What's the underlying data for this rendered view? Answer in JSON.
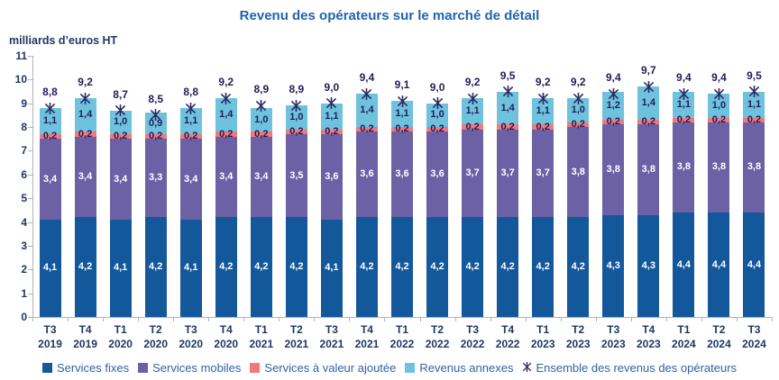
{
  "title": "Revenu des opérateurs sur le marché de détail",
  "unit_label": "milliards d’euros HT",
  "colors": {
    "title_text": "#1F64AF",
    "legend_text": "#2E64A5",
    "axis_text": "#1F3864",
    "axis_line": "#B3B3B3",
    "value_text_dark": "#231C5A",
    "marker": "#2E2963"
  },
  "chart_data": {
    "type": "bar",
    "stacked": true,
    "grid": false,
    "legend_position": "bottom",
    "decimal_separator": ",",
    "ylim": [
      0,
      11
    ],
    "ytick_step": 1,
    "categories": [
      "T3 2019",
      "T4 2019",
      "T1 2020",
      "T2 2020",
      "T3 2020",
      "T4 2020",
      "T1 2021",
      "T2 2021",
      "T3 2021",
      "T4 2021",
      "T1 2022",
      "T2 2022",
      "T3 2022",
      "T4 2022",
      "T1 2023",
      "T2 2023",
      "T3 2023",
      "T4 2023",
      "T1 2024",
      "T2 2024",
      "T3 2024"
    ],
    "series": [
      {
        "name": "Services fixes",
        "color": "#14589C",
        "label_color": "#FFFFFF",
        "values": [
          4.1,
          4.2,
          4.1,
          4.2,
          4.1,
          4.2,
          4.2,
          4.2,
          4.1,
          4.2,
          4.2,
          4.2,
          4.2,
          4.2,
          4.2,
          4.2,
          4.3,
          4.3,
          4.4,
          4.4,
          4.4
        ]
      },
      {
        "name": "Services mobiles",
        "color": "#6C61A4",
        "label_color": "#FFFFFF",
        "values": [
          3.4,
          3.4,
          3.4,
          3.3,
          3.4,
          3.4,
          3.4,
          3.5,
          3.6,
          3.6,
          3.6,
          3.6,
          3.7,
          3.7,
          3.7,
          3.8,
          3.8,
          3.8,
          3.8,
          3.8,
          3.8
        ]
      },
      {
        "name": "Services à valeur ajoutée",
        "color": "#F1787B",
        "label_color": "#231C5A",
        "values": [
          0.2,
          0.2,
          0.2,
          0.2,
          0.2,
          0.2,
          0.2,
          0.2,
          0.2,
          0.2,
          0.2,
          0.2,
          0.2,
          0.2,
          0.2,
          0.2,
          0.2,
          0.2,
          0.2,
          0.2,
          0.2
        ]
      },
      {
        "name": "Revenus annexes",
        "color": "#6FC2DD",
        "label_color": "#231C5A",
        "values": [
          1.1,
          1.4,
          1.0,
          0.9,
          1.1,
          1.4,
          1.0,
          1.0,
          1.1,
          1.4,
          1.1,
          1.0,
          1.1,
          1.4,
          1.1,
          1.0,
          1.2,
          1.4,
          1.1,
          1.0,
          1.1
        ]
      }
    ],
    "totals": {
      "name": "Ensemble des revenus des opérateurs",
      "marker": "asterisk",
      "values": [
        8.8,
        9.2,
        8.7,
        8.5,
        8.8,
        9.2,
        8.9,
        8.9,
        9.0,
        9.4,
        9.1,
        9.0,
        9.2,
        9.5,
        9.2,
        9.2,
        9.4,
        9.7,
        9.4,
        9.4,
        9.5
      ]
    }
  }
}
